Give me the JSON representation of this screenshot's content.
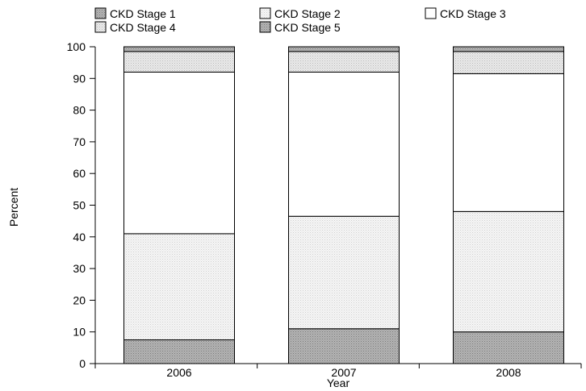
{
  "chart_data": {
    "type": "bar",
    "stacked": true,
    "title": "",
    "xlabel": "Year",
    "ylabel": "Percent",
    "ylim": [
      0,
      100
    ],
    "yticks": [
      0,
      10,
      20,
      30,
      40,
      50,
      60,
      70,
      80,
      90,
      100
    ],
    "categories": [
      "2006",
      "2007",
      "2008"
    ],
    "series": [
      {
        "name": "CKD Stage 1",
        "values": [
          7.5,
          11.0,
          10.0
        ],
        "color": "#a6a6a6",
        "pattern": "dark-dots"
      },
      {
        "name": "CKD Stage 2",
        "values": [
          33.5,
          35.5,
          38.0
        ],
        "color": "#ededed",
        "pattern": "light-dots"
      },
      {
        "name": "CKD Stage 3",
        "values": [
          51.0,
          45.5,
          43.5
        ],
        "color": "#ffffff",
        "pattern": "none"
      },
      {
        "name": "CKD Stage 4",
        "values": [
          6.5,
          6.5,
          7.0
        ],
        "color": "#dcdcdc",
        "pattern": "medium-dots"
      },
      {
        "name": "CKD Stage 5",
        "values": [
          1.5,
          1.5,
          1.5
        ],
        "color": "#9a9a9a",
        "pattern": "dark-dots"
      }
    ],
    "legend_position": "top",
    "grid": false
  }
}
